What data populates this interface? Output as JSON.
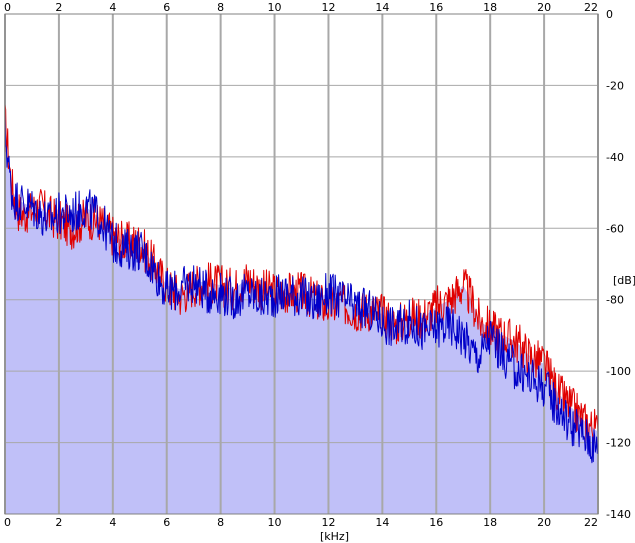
{
  "chart_data": {
    "type": "area",
    "xlabel": "[kHz]",
    "ylabel": "[dB]",
    "xlim": [
      0,
      22
    ],
    "ylim": [
      -140,
      0
    ],
    "x_ticks": [
      "0",
      "2",
      "4",
      "6",
      "8",
      "10",
      "12",
      "14",
      "16",
      "18",
      "20",
      "22"
    ],
    "y_ticks": [
      "0",
      "-20",
      "-40",
      "-60",
      "-80",
      "-100",
      "-120",
      "-140"
    ],
    "grid": true,
    "colors": {
      "fill": "#c0c0f8",
      "series_1": "#e00000",
      "series_2": "#0000c8",
      "grid": "#a8a8a8",
      "border": "#808080"
    },
    "series": [
      {
        "color": "#e00000",
        "x": [
          0,
          0.1,
          0.2,
          0.3,
          0.5,
          0.7,
          1,
          1.3,
          1.6,
          2,
          2.5,
          3,
          3.5,
          4,
          4.5,
          5,
          5.5,
          6,
          6.5,
          7,
          7.5,
          8,
          8.5,
          9,
          9.5,
          10,
          10.5,
          11,
          11.5,
          12,
          12.5,
          13,
          13.5,
          14,
          14.5,
          15,
          15.5,
          16,
          16.5,
          17,
          17.3,
          17.6,
          18,
          18.5,
          19,
          19.5,
          20,
          20.5,
          21,
          21.5,
          22
        ],
        "values": [
          -30,
          -37,
          -45,
          -50,
          -55,
          -56,
          -55,
          -54,
          -56,
          -58,
          -60,
          -57,
          -58,
          -62,
          -64,
          -64,
          -70,
          -76,
          -79,
          -76,
          -75,
          -76,
          -77,
          -74,
          -77,
          -78,
          -78,
          -78,
          -80,
          -82,
          -81,
          -83,
          -83,
          -84,
          -87,
          -85,
          -85,
          -82,
          -80,
          -76,
          -80,
          -86,
          -88,
          -90,
          -92,
          -96,
          -98,
          -106,
          -110,
          -114,
          -117
        ]
      },
      {
        "color": "#0000c8",
        "x": [
          0,
          0.1,
          0.2,
          0.3,
          0.5,
          0.7,
          1,
          1.3,
          1.6,
          2,
          2.5,
          3,
          3.5,
          4,
          4.5,
          5,
          5.5,
          6,
          6.5,
          7,
          7.5,
          8,
          8.5,
          9,
          9.5,
          10,
          10.5,
          11,
          11.5,
          12,
          12.5,
          13,
          13.5,
          14,
          14.5,
          15,
          15.5,
          16,
          16.5,
          17,
          17.3,
          17.6,
          18,
          18.5,
          19,
          19.5,
          20,
          20.5,
          21,
          21.5,
          22
        ],
        "values": [
          -33,
          -40,
          -47,
          -52,
          -52,
          -53,
          -54,
          -56,
          -58,
          -56,
          -56,
          -54,
          -57,
          -64,
          -66,
          -66,
          -71,
          -78,
          -77,
          -75,
          -78,
          -78,
          -80,
          -78,
          -80,
          -79,
          -78,
          -79,
          -81,
          -78,
          -80,
          -82,
          -83,
          -86,
          -88,
          -86,
          -89,
          -88,
          -87,
          -90,
          -94,
          -96,
          -90,
          -96,
          -100,
          -102,
          -104,
          -110,
          -115,
          -118,
          -122
        ]
      }
    ]
  }
}
